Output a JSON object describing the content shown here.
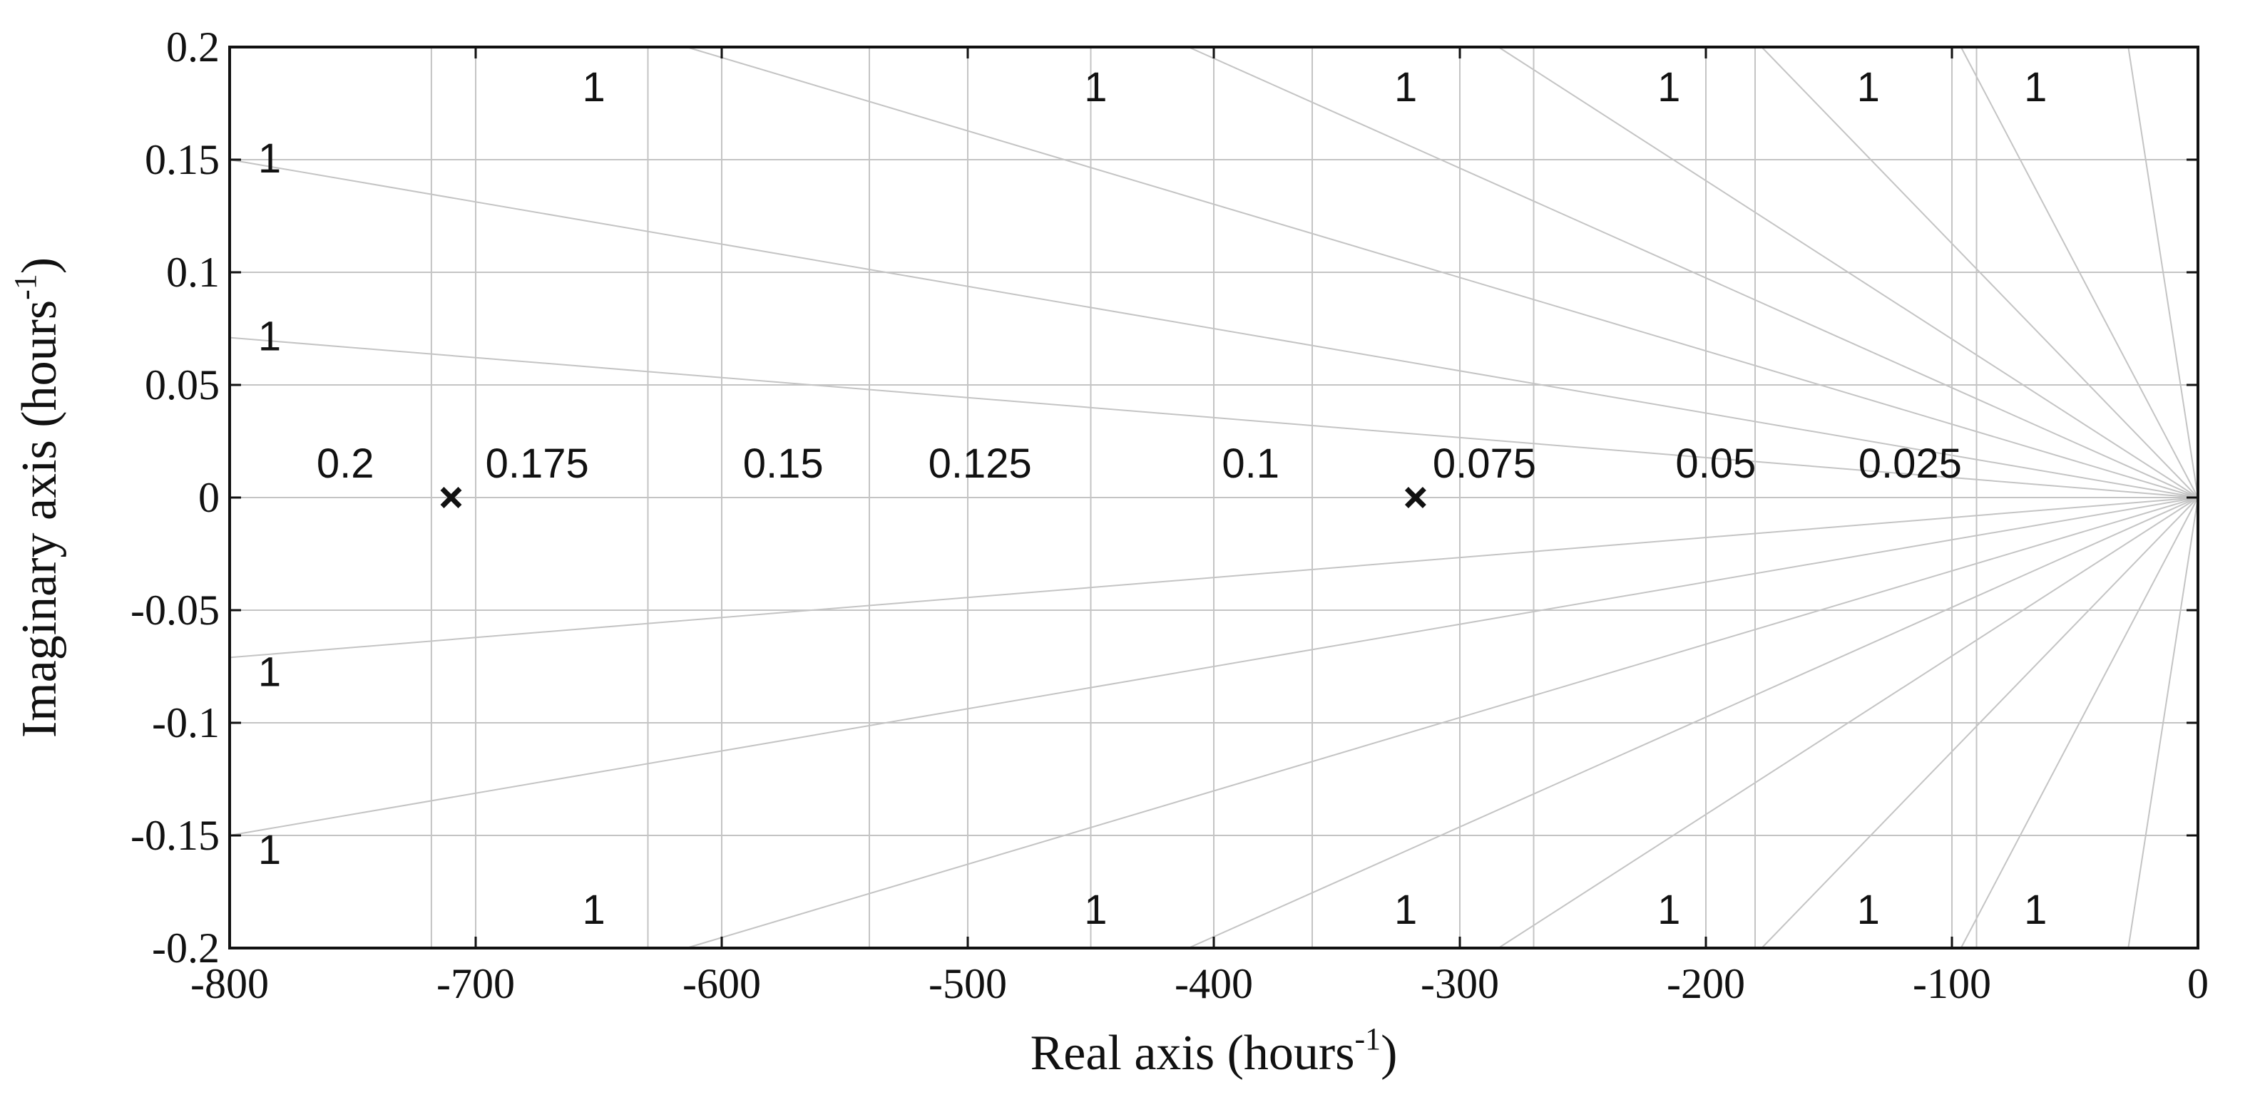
{
  "chart_data": {
    "type": "scatter",
    "xlabel": "Real axis (hours",
    "xlabel_sup": "-1",
    "xlabel_tail": ")",
    "ylabel": "Imaginary axis (hours",
    "ylabel_sup": "-1",
    "ylabel_tail": ")",
    "xlim": [
      -800,
      0
    ],
    "ylim": [
      -0.2,
      0.2
    ],
    "x_ticks": [
      -800,
      -700,
      -600,
      -500,
      -400,
      -300,
      -200,
      -100,
      0
    ],
    "x_tick_labels": [
      "-800",
      "-700",
      "-600",
      "-500",
      "-400",
      "-300",
      "-200",
      "-100",
      "0"
    ],
    "y_ticks": [
      0.2,
      0.15,
      0.1,
      0.05,
      0,
      -0.05,
      -0.1,
      -0.15,
      -0.2
    ],
    "y_tick_labels": [
      "0.2",
      "0.15",
      "0.1",
      "0.05",
      "0",
      "-0.05",
      "-0.1",
      "-0.15",
      "-0.2"
    ],
    "grid": true,
    "poles": [
      {
        "x": -710,
        "y": 0,
        "marker": "x"
      },
      {
        "x": -318,
        "y": 0,
        "marker": "x"
      }
    ],
    "damping_lines": [
      {
        "label": "1",
        "top_label_x": -652,
        "left_label_y": 0.15
      },
      {
        "label": "1",
        "top_label_x": -448,
        "left_label_y": 0.071
      },
      {
        "label": "1",
        "top_label_x": -322
      },
      {
        "label": "1",
        "top_label_x": -215
      },
      {
        "label": "1",
        "top_label_x": -134
      },
      {
        "label": "1",
        "top_label_x": -66
      }
    ],
    "frequency_lines": [
      {
        "label": "0.2",
        "x": -718,
        "label_x": -753
      },
      {
        "label": "0.175",
        "x": -630,
        "label_x": -675
      },
      {
        "label": "0.15",
        "x": -540,
        "label_x": -575
      },
      {
        "label": "0.125",
        "x": -450,
        "label_x": -495
      },
      {
        "label": "0.1",
        "x": -360,
        "label_x": -385
      },
      {
        "label": "0.075",
        "x": -270,
        "label_x": -290
      },
      {
        "label": "0.05",
        "x": -180,
        "label_x": -196
      },
      {
        "label": "0.025",
        "x": -90,
        "label_x": -117
      }
    ]
  }
}
